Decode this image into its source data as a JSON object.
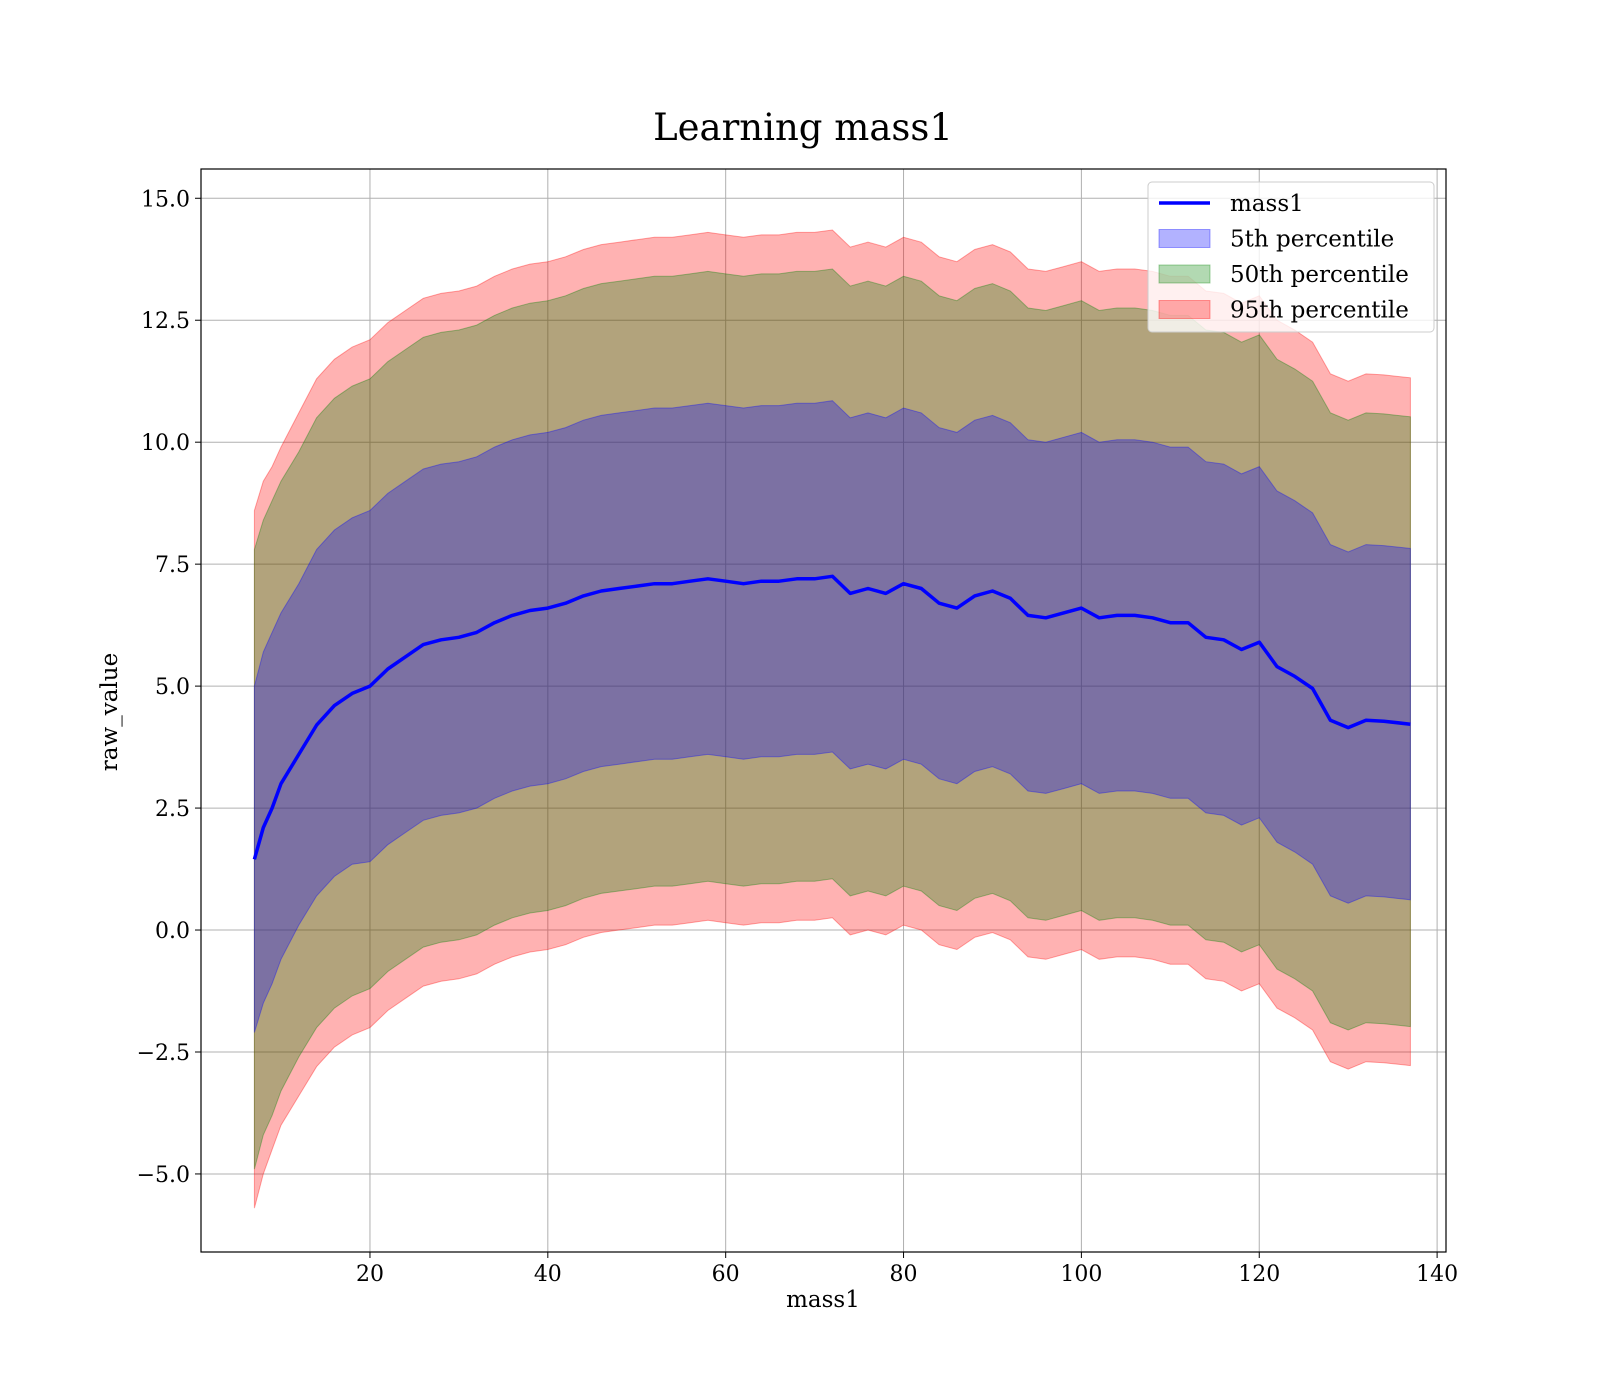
{
  "chart_data": {
    "type": "line",
    "title": "Learning mass1",
    "xlabel": "mass1",
    "ylabel": "raw_value",
    "xlim": [
      1,
      141
    ],
    "ylim": [
      -6.6,
      15.6
    ],
    "xticks": [
      20,
      40,
      60,
      80,
      100,
      120,
      140
    ],
    "xtick_labels": [
      "20",
      "40",
      "60",
      "80",
      "100",
      "120",
      "140"
    ],
    "yticks": [
      -5.0,
      -2.5,
      0.0,
      2.5,
      5.0,
      7.5,
      10.0,
      12.5,
      15.0
    ],
    "ytick_labels": [
      "−5.0",
      "−2.5",
      "0.0",
      "2.5",
      "5.0",
      "7.5",
      "10.0",
      "12.5",
      "15.0"
    ],
    "grid": true,
    "legend_position": "top-right",
    "legend": [
      {
        "label": "mass1",
        "kind": "line",
        "color": "#0000ff"
      },
      {
        "label": "5th percentile",
        "kind": "patch",
        "color": "#0000ff"
      },
      {
        "label": "50th percentile",
        "kind": "patch",
        "color": "#008000"
      },
      {
        "label": "95th percentile",
        "kind": "patch",
        "color": "#ff0000"
      }
    ],
    "series": [
      {
        "name": "mass1",
        "color": "#0000ff",
        "x": [
          7,
          8,
          9,
          10,
          12,
          14,
          16,
          18,
          20,
          22,
          24,
          26,
          28,
          30,
          32,
          34,
          36,
          38,
          40,
          42,
          44,
          46,
          48,
          50,
          52,
          54,
          56,
          58,
          60,
          62,
          64,
          66,
          68,
          70,
          72,
          74,
          76,
          78,
          80,
          82,
          84,
          86,
          88,
          90,
          92,
          94,
          96,
          98,
          100,
          102,
          104,
          106,
          108,
          110,
          112,
          114,
          116,
          118,
          120,
          122,
          124,
          126,
          128,
          130,
          132,
          134,
          137
        ],
        "y": [
          1.45,
          2.1,
          2.5,
          3.0,
          3.6,
          4.2,
          4.6,
          4.85,
          5.0,
          5.35,
          5.6,
          5.85,
          5.95,
          6.0,
          6.1,
          6.3,
          6.45,
          6.55,
          6.6,
          6.7,
          6.85,
          6.95,
          7.0,
          7.05,
          7.1,
          7.1,
          7.15,
          7.2,
          7.15,
          7.1,
          7.15,
          7.15,
          7.2,
          7.2,
          7.25,
          6.9,
          7.0,
          6.9,
          7.1,
          7.0,
          6.7,
          6.6,
          6.85,
          6.95,
          6.8,
          6.45,
          6.4,
          6.5,
          6.6,
          6.4,
          6.45,
          6.45,
          6.4,
          6.3,
          6.3,
          6.0,
          5.95,
          5.75,
          5.9,
          5.4,
          5.2,
          4.95,
          4.3,
          4.15,
          4.3,
          4.28,
          4.22
        ]
      }
    ],
    "bands": [
      {
        "name": "95th percentile",
        "color": "#ff0000",
        "x": [
          7,
          8,
          9,
          10,
          12,
          14,
          16,
          18,
          20,
          22,
          24,
          26,
          28,
          30,
          32,
          34,
          36,
          38,
          40,
          42,
          44,
          46,
          48,
          50,
          52,
          54,
          56,
          58,
          60,
          62,
          64,
          66,
          68,
          70,
          72,
          74,
          76,
          78,
          80,
          82,
          84,
          86,
          88,
          90,
          92,
          94,
          96,
          98,
          100,
          102,
          104,
          106,
          108,
          110,
          112,
          114,
          116,
          118,
          120,
          122,
          124,
          126,
          128,
          130,
          132,
          134,
          137
        ],
        "upper": [
          8.6,
          9.2,
          9.5,
          9.9,
          10.6,
          11.3,
          11.7,
          11.95,
          12.1,
          12.45,
          12.7,
          12.95,
          13.05,
          13.1,
          13.2,
          13.4,
          13.55,
          13.65,
          13.7,
          13.8,
          13.95,
          14.05,
          14.1,
          14.15,
          14.2,
          14.2,
          14.25,
          14.3,
          14.25,
          14.2,
          14.25,
          14.25,
          14.3,
          14.3,
          14.35,
          14.0,
          14.1,
          14.0,
          14.2,
          14.1,
          13.8,
          13.7,
          13.95,
          14.05,
          13.9,
          13.55,
          13.5,
          13.6,
          13.7,
          13.5,
          13.55,
          13.55,
          13.5,
          13.4,
          13.4,
          13.1,
          13.05,
          12.85,
          13.0,
          12.5,
          12.3,
          12.05,
          11.4,
          11.25,
          11.4,
          11.38,
          11.32
        ],
        "lower": [
          -5.7,
          -5.0,
          -4.5,
          -4.0,
          -3.4,
          -2.8,
          -2.4,
          -2.15,
          -2.0,
          -1.65,
          -1.4,
          -1.15,
          -1.05,
          -1.0,
          -0.9,
          -0.7,
          -0.55,
          -0.45,
          -0.4,
          -0.3,
          -0.15,
          -0.05,
          0.0,
          0.05,
          0.1,
          0.1,
          0.15,
          0.2,
          0.15,
          0.1,
          0.15,
          0.15,
          0.2,
          0.2,
          0.25,
          -0.1,
          0.0,
          -0.1,
          0.1,
          0.0,
          -0.3,
          -0.4,
          -0.15,
          -0.05,
          -0.2,
          -0.55,
          -0.6,
          -0.5,
          -0.4,
          -0.6,
          -0.55,
          -0.55,
          -0.6,
          -0.7,
          -0.7,
          -1.0,
          -1.05,
          -1.25,
          -1.1,
          -1.6,
          -1.8,
          -2.05,
          -2.7,
          -2.85,
          -2.7,
          -2.72,
          -2.78
        ]
      },
      {
        "name": "50th percentile",
        "color": "#008000",
        "x": [
          7,
          8,
          9,
          10,
          12,
          14,
          16,
          18,
          20,
          22,
          24,
          26,
          28,
          30,
          32,
          34,
          36,
          38,
          40,
          42,
          44,
          46,
          48,
          50,
          52,
          54,
          56,
          58,
          60,
          62,
          64,
          66,
          68,
          70,
          72,
          74,
          76,
          78,
          80,
          82,
          84,
          86,
          88,
          90,
          92,
          94,
          96,
          98,
          100,
          102,
          104,
          106,
          108,
          110,
          112,
          114,
          116,
          118,
          120,
          122,
          124,
          126,
          128,
          130,
          132,
          134,
          137
        ],
        "upper": [
          7.8,
          8.4,
          8.8,
          9.2,
          9.8,
          10.5,
          10.9,
          11.15,
          11.3,
          11.65,
          11.9,
          12.15,
          12.25,
          12.3,
          12.4,
          12.6,
          12.75,
          12.85,
          12.9,
          13.0,
          13.15,
          13.25,
          13.3,
          13.35,
          13.4,
          13.4,
          13.45,
          13.5,
          13.45,
          13.4,
          13.45,
          13.45,
          13.5,
          13.5,
          13.55,
          13.2,
          13.3,
          13.2,
          13.4,
          13.3,
          13.0,
          12.9,
          13.15,
          13.25,
          13.1,
          12.75,
          12.7,
          12.8,
          12.9,
          12.7,
          12.75,
          12.75,
          12.7,
          12.6,
          12.6,
          12.3,
          12.25,
          12.05,
          12.2,
          11.7,
          11.5,
          11.25,
          10.6,
          10.45,
          10.6,
          10.58,
          10.52
        ],
        "lower": [
          -4.9,
          -4.2,
          -3.8,
          -3.3,
          -2.6,
          -2.0,
          -1.6,
          -1.35,
          -1.2,
          -0.85,
          -0.6,
          -0.35,
          -0.25,
          -0.2,
          -0.1,
          0.1,
          0.25,
          0.35,
          0.4,
          0.5,
          0.65,
          0.75,
          0.8,
          0.85,
          0.9,
          0.9,
          0.95,
          1.0,
          0.95,
          0.9,
          0.95,
          0.95,
          1.0,
          1.0,
          1.05,
          0.7,
          0.8,
          0.7,
          0.9,
          0.8,
          0.5,
          0.4,
          0.65,
          0.75,
          0.6,
          0.25,
          0.2,
          0.3,
          0.4,
          0.2,
          0.25,
          0.25,
          0.2,
          0.1,
          0.1,
          -0.2,
          -0.25,
          -0.45,
          -0.3,
          -0.8,
          -1.0,
          -1.25,
          -1.9,
          -2.05,
          -1.9,
          -1.92,
          -1.98
        ]
      },
      {
        "name": "5th percentile",
        "color": "#0000ff",
        "x": [
          7,
          8,
          9,
          10,
          12,
          14,
          16,
          18,
          20,
          22,
          24,
          26,
          28,
          30,
          32,
          34,
          36,
          38,
          40,
          42,
          44,
          46,
          48,
          50,
          52,
          54,
          56,
          58,
          60,
          62,
          64,
          66,
          68,
          70,
          72,
          74,
          76,
          78,
          80,
          82,
          84,
          86,
          88,
          90,
          92,
          94,
          96,
          98,
          100,
          102,
          104,
          106,
          108,
          110,
          112,
          114,
          116,
          118,
          120,
          122,
          124,
          126,
          128,
          130,
          132,
          134,
          137
        ],
        "upper": [
          5.0,
          5.7,
          6.1,
          6.5,
          7.1,
          7.8,
          8.2,
          8.45,
          8.6,
          8.95,
          9.2,
          9.45,
          9.55,
          9.6,
          9.7,
          9.9,
          10.05,
          10.15,
          10.2,
          10.3,
          10.45,
          10.55,
          10.6,
          10.65,
          10.7,
          10.7,
          10.75,
          10.8,
          10.75,
          10.7,
          10.75,
          10.75,
          10.8,
          10.8,
          10.85,
          10.5,
          10.6,
          10.5,
          10.7,
          10.6,
          10.3,
          10.2,
          10.45,
          10.55,
          10.4,
          10.05,
          10.0,
          10.1,
          10.2,
          10.0,
          10.05,
          10.05,
          10.0,
          9.9,
          9.9,
          9.6,
          9.55,
          9.35,
          9.5,
          9.0,
          8.8,
          8.55,
          7.9,
          7.75,
          7.9,
          7.88,
          7.82
        ],
        "lower": [
          -2.1,
          -1.5,
          -1.1,
          -0.6,
          0.1,
          0.7,
          1.1,
          1.35,
          1.4,
          1.75,
          2.0,
          2.25,
          2.35,
          2.4,
          2.5,
          2.7,
          2.85,
          2.95,
          3.0,
          3.1,
          3.25,
          3.35,
          3.4,
          3.45,
          3.5,
          3.5,
          3.55,
          3.6,
          3.55,
          3.5,
          3.55,
          3.55,
          3.6,
          3.6,
          3.65,
          3.3,
          3.4,
          3.3,
          3.5,
          3.4,
          3.1,
          3.0,
          3.25,
          3.35,
          3.2,
          2.85,
          2.8,
          2.9,
          3.0,
          2.8,
          2.85,
          2.85,
          2.8,
          2.7,
          2.7,
          2.4,
          2.35,
          2.15,
          2.3,
          1.8,
          1.6,
          1.35,
          0.7,
          0.55,
          0.7,
          0.68,
          0.62
        ]
      }
    ]
  }
}
